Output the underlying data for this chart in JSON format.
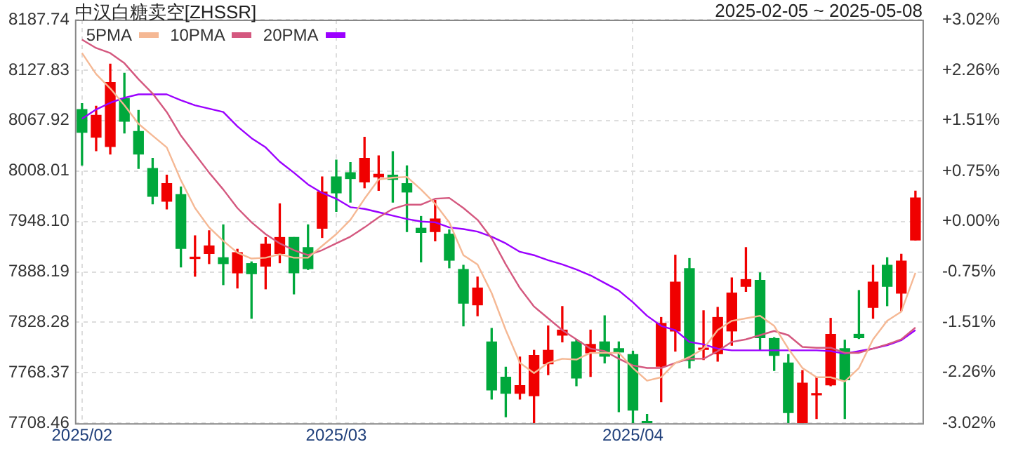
{
  "chart_data": {
    "type": "candlestick",
    "title": "中汉白糖卖空[ZHSSR]",
    "subtitle": "2025-02-05 ~ 2025-05-08",
    "categories": [
      "2025/02",
      null,
      null,
      null,
      null,
      null,
      null,
      null,
      null,
      null,
      null,
      null,
      null,
      null,
      null,
      null,
      null,
      null,
      "2025/03",
      null,
      null,
      null,
      null,
      null,
      null,
      null,
      null,
      null,
      null,
      null,
      null,
      null,
      null,
      null,
      null,
      null,
      null,
      null,
      null,
      "2025/04",
      null,
      null,
      null,
      null,
      null,
      null,
      null,
      null,
      null,
      null,
      null,
      null,
      null,
      null,
      null,
      null,
      null,
      null,
      null,
      null
    ],
    "ohlc": [
      [
        8081,
        8088,
        8015,
        8054
      ],
      [
        8048,
        8085,
        8032,
        8074
      ],
      [
        8037,
        8135,
        8028,
        8113
      ],
      [
        8094,
        8124,
        8053,
        8067
      ],
      [
        8055,
        8080,
        8011,
        8028
      ],
      [
        8011,
        8023,
        7969,
        7978
      ],
      [
        7972,
        8003,
        7963,
        7993
      ],
      [
        7980,
        7989,
        7894,
        7916
      ],
      [
        7904,
        7931,
        7883,
        7905
      ],
      [
        7910,
        7937,
        7898,
        7919
      ],
      [
        7905,
        7944,
        7873,
        7898
      ],
      [
        7887,
        7915,
        7869,
        7911
      ],
      [
        7898,
        7900,
        7833,
        7886
      ],
      [
        7895,
        7929,
        7868,
        7921
      ],
      [
        7910,
        7969,
        7899,
        7929
      ],
      [
        7929,
        7929,
        7862,
        7887
      ],
      [
        7917,
        7944,
        7891,
        7892
      ],
      [
        7940,
        8001,
        7929,
        7983
      ],
      [
        8001,
        8021,
        7960,
        7982
      ],
      [
        8006,
        8018,
        7971,
        7999
      ],
      [
        7995,
        8048,
        7988,
        8023
      ],
      [
        8001,
        8026,
        7985,
        8004
      ],
      [
        8003,
        8031,
        7971,
        7998
      ],
      [
        7993,
        8014,
        7936,
        7983
      ],
      [
        7940,
        7954,
        7900,
        7935
      ],
      [
        7936,
        7973,
        7925,
        7951
      ],
      [
        7933,
        7938,
        7893,
        7902
      ],
      [
        7891,
        7896,
        7824,
        7851
      ],
      [
        7849,
        7882,
        7836,
        7869
      ],
      [
        7805,
        7821,
        7737,
        7748
      ],
      [
        7763,
        7775,
        7716,
        7744
      ],
      [
        7744,
        7787,
        7737,
        7753
      ],
      [
        7741,
        7795,
        7709,
        7789
      ],
      [
        7779,
        7824,
        7766,
        7795
      ],
      [
        7813,
        7847,
        7805,
        7819
      ],
      [
        7805,
        7808,
        7753,
        7762
      ],
      [
        7792,
        7819,
        7764,
        7802
      ],
      [
        7805,
        7836,
        7780,
        7788
      ],
      [
        7797,
        7805,
        7722,
        7793
      ],
      [
        7790,
        7794,
        7709,
        7724
      ],
      [
        7710,
        7719,
        7709,
        7709
      ],
      [
        7776,
        7834,
        7734,
        7827
      ],
      [
        7818,
        7908,
        7794,
        7876
      ],
      [
        7892,
        7904,
        7774,
        7783
      ],
      [
        7796,
        7842,
        7784,
        7797
      ],
      [
        7791,
        7846,
        7782,
        7834
      ],
      [
        7818,
        7881,
        7801,
        7863
      ],
      [
        7871,
        7917,
        7865,
        7879
      ],
      [
        7878,
        7887,
        7795,
        7810
      ],
      [
        7809,
        7810,
        7771,
        7789
      ],
      [
        7780,
        7790,
        7709,
        7721
      ],
      [
        7709,
        7771,
        7709,
        7756
      ],
      [
        7742,
        7763,
        7714,
        7743
      ],
      [
        7754,
        7833,
        7753,
        7814
      ],
      [
        7797,
        7807,
        7714,
        7760
      ],
      [
        7814,
        7866,
        7809,
        7810
      ],
      [
        7846,
        7896,
        7833,
        7876
      ],
      [
        7896,
        7905,
        7848,
        7871
      ],
      [
        7863,
        7909,
        7842,
        7901
      ],
      [
        7926,
        7984,
        7926,
        7976
      ]
    ],
    "colors": [
      "#00a83c",
      "#f00000",
      "#f00000",
      "#00a83c",
      "#00a83c",
      "#00a83c",
      "#f00000",
      "#00a83c",
      "#f00000",
      "#f00000",
      "#00a83c",
      "#f00000",
      "#00a83c",
      "#f00000",
      "#f00000",
      "#00a83c",
      "#00a83c",
      "#f00000",
      "#00a83c",
      "#00a83c",
      "#f00000",
      "#f00000",
      "#00a83c",
      "#00a83c",
      "#00a83c",
      "#f00000",
      "#00a83c",
      "#00a83c",
      "#f00000",
      "#00a83c",
      "#00a83c",
      "#f00000",
      "#f00000",
      "#f00000",
      "#f00000",
      "#00a83c",
      "#f00000",
      "#00a83c",
      "#00a83c",
      "#00a83c",
      "#00a83c",
      "#f00000",
      "#f00000",
      "#00a83c",
      "#f00000",
      "#f00000",
      "#f00000",
      "#f00000",
      "#00a83c",
      "#00a83c",
      "#00a83c",
      "#f00000",
      "#f00000",
      "#f00000",
      "#00a83c",
      "#00a83c",
      "#f00000",
      "#00a83c",
      "#f00000",
      "#f00000"
    ],
    "series": [
      {
        "type": "line",
        "name": "5PMA",
        "color": "#f5b894",
        "values": [
          8148,
          8123,
          8106,
          8086,
          8064,
          8050,
          8036,
          7997,
          7964,
          7941,
          7925,
          7911,
          7904,
          7905,
          7909,
          7905,
          7905,
          7919,
          7933,
          7950,
          7975,
          7998,
          8000,
          8001,
          7986,
          7969,
          7947,
          7908,
          7897,
          7863,
          7819,
          7780,
          7768,
          7780,
          7785,
          7784,
          7792,
          7792,
          7792,
          7774,
          7759,
          7763,
          7780,
          7787,
          7797,
          7819,
          7830,
          7833,
          7836,
          7824,
          7797,
          7774,
          7763,
          7763,
          7758,
          7774,
          7808,
          7830,
          7841,
          7887
        ]
      },
      {
        "type": "line",
        "name": "10PMA",
        "color": "#d4587f",
        "values": [
          8164,
          8154,
          8148,
          8136,
          8117,
          8100,
          8078,
          8050,
          8028,
          8006,
          7986,
          7964,
          7947,
          7933,
          7922,
          7914,
          7908,
          7914,
          7922,
          7930,
          7941,
          7953,
          7963,
          7968,
          7968,
          7975,
          7976,
          7964,
          7950,
          7928,
          7897,
          7869,
          7847,
          7833,
          7819,
          7808,
          7797,
          7794,
          7785,
          7777,
          7774,
          7774,
          7780,
          7785,
          7785,
          7794,
          7805,
          7808,
          7813,
          7818,
          7813,
          7799,
          7798,
          7798,
          7792,
          7792,
          7797,
          7802,
          7808,
          7822
        ]
      },
      {
        "type": "line",
        "name": "20PMA",
        "color": "#9b00ff",
        "values": [
          8070,
          8081,
          8089,
          8095,
          8099,
          8099,
          8099,
          8092,
          8086,
          8082,
          8078,
          8061,
          8047,
          8036,
          8019,
          8006,
          7992,
          7982,
          7975,
          7965,
          7963,
          7959,
          7955,
          7951,
          7948,
          7947,
          7941,
          7939,
          7936,
          7930,
          7922,
          7912,
          7908,
          7902,
          7897,
          7891,
          7884,
          7875,
          7866,
          7852,
          7836,
          7824,
          7819,
          7805,
          7802,
          7797,
          7795,
          7795,
          7795,
          7795,
          7795,
          7795,
          7795,
          7794,
          7791,
          7794,
          7797,
          7801,
          7807,
          7819
        ]
      }
    ],
    "ylim": [
      7708.46,
      8187.74
    ],
    "yticks": [
      {
        "value": 7708.46,
        "label": "7708.46"
      },
      {
        "value": 7768.37,
        "label": "7768.37"
      },
      {
        "value": 7828.28,
        "label": "7828.28"
      },
      {
        "value": 7888.19,
        "label": "7888.19"
      },
      {
        "value": 7948.1,
        "label": "7948.10"
      },
      {
        "value": 8008.01,
        "label": "8008.01"
      },
      {
        "value": 8067.92,
        "label": "8067.92"
      },
      {
        "value": 8127.83,
        "label": "8127.83"
      },
      {
        "value": 8187.74,
        "label": "8187.74"
      }
    ],
    "y2lim": [
      -3.02,
      3.02
    ],
    "y2ticks": [
      {
        "value": -3.02,
        "label": "-3.02%"
      },
      {
        "value": -2.26,
        "label": "-2.26%"
      },
      {
        "value": -1.51,
        "label": "-1.51%"
      },
      {
        "value": -0.75,
        "label": "-0.75%"
      },
      {
        "value": 0,
        "label": "+0.00%"
      },
      {
        "value": 0.75,
        "label": "+0.75%"
      },
      {
        "value": 1.51,
        "label": "+1.51%"
      },
      {
        "value": 2.26,
        "label": "+2.26%"
      },
      {
        "value": 3.02,
        "label": "+3.02%"
      }
    ],
    "grid": true,
    "legend": "top left"
  }
}
